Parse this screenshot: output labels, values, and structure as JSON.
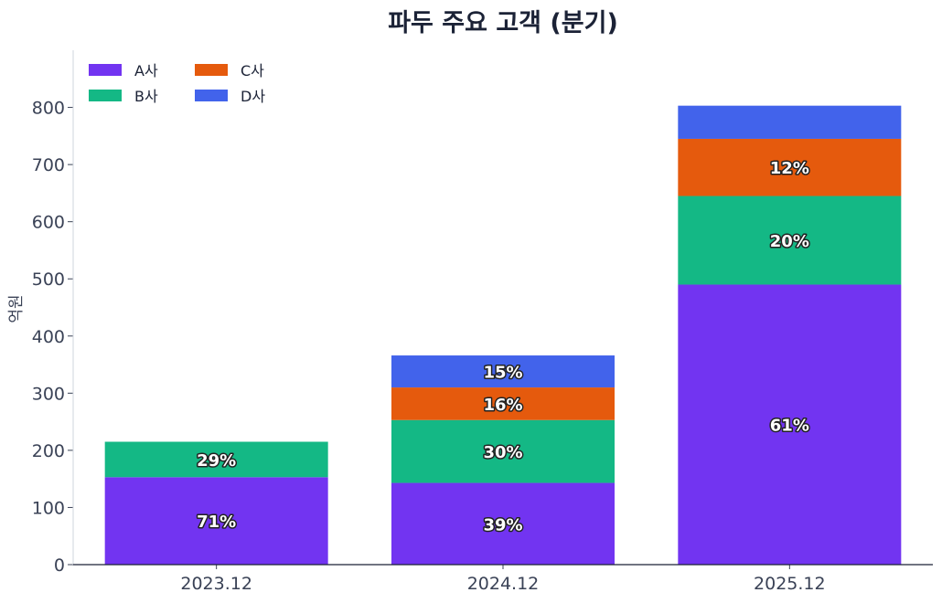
{
  "chart_data": {
    "type": "bar",
    "stacked": true,
    "title": "파두 주요 고객 (분기)",
    "ylabel": "억원",
    "xlabel": "",
    "ylim": [
      0,
      900
    ],
    "yticks": [
      0,
      100,
      200,
      300,
      400,
      500,
      600,
      700,
      800
    ],
    "categories": [
      "2023.12",
      "2024.12",
      "2025.12"
    ],
    "series": [
      {
        "name": "A사",
        "color": "#7234f1",
        "values": [
          153,
          143,
          490
        ],
        "labels": [
          "71%",
          "39%",
          "61%"
        ]
      },
      {
        "name": "B사",
        "color": "#14b885",
        "values": [
          62,
          110,
          155
        ],
        "labels": [
          "29%",
          "30%",
          "20%"
        ]
      },
      {
        "name": "C사",
        "color": "#e55a0d",
        "values": [
          0,
          57,
          100
        ],
        "labels": [
          "",
          "16%",
          "12%"
        ]
      },
      {
        "name": "D사",
        "color": "#4263eb",
        "values": [
          0,
          56,
          58
        ],
        "labels": [
          "",
          "15%",
          ""
        ]
      }
    ],
    "legend": {
      "position": "top-left",
      "columns": 3
    },
    "grid": false
  }
}
